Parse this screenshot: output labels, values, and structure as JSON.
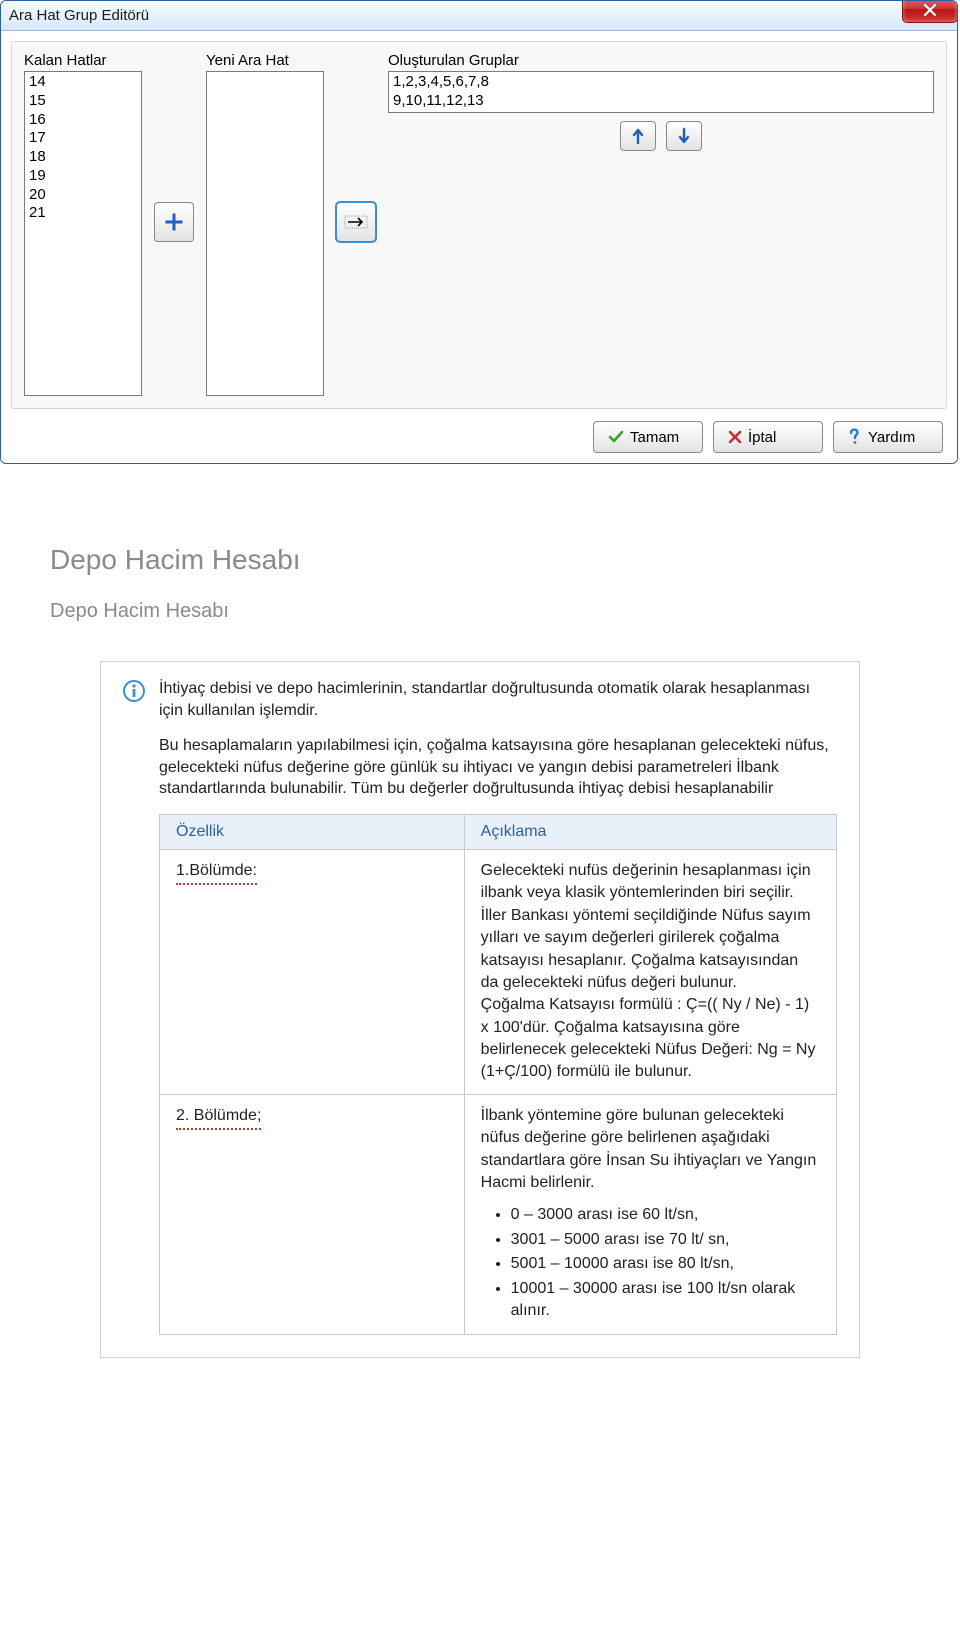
{
  "dialog": {
    "title": "Ara Hat Grup Editörü",
    "columns": {
      "kalan_label": "Kalan Hatlar",
      "yeni_label": "Yeni Ara Hat",
      "gruplar_label": "Oluşturulan Gruplar"
    },
    "kalan_items": [
      "14",
      "15",
      "16",
      "17",
      "18",
      "19",
      "20",
      "21"
    ],
    "yeni_items": [],
    "gruplar_items": [
      "1,2,3,4,5,6,7,8",
      "9,10,11,12,13"
    ],
    "buttons": {
      "tamam": "Tamam",
      "iptal": "İptal",
      "yardim": "Yardım"
    },
    "colors": {
      "title_gradient_top": "#f7fbff",
      "title_gradient_bottom": "#d7e7f6",
      "border": "#2a5fa0",
      "close_red": "#cf3636",
      "plus_blue": "#1e5fbf",
      "arrow_blue": "#1e5fbf",
      "check_green": "#3aa02f",
      "x_red": "#c23030",
      "q_blue": "#2a7fc4",
      "focus_outline": "#3a8fd6"
    }
  },
  "doc": {
    "heading": "Depo Hacim Hesabı",
    "subheading": "Depo Hacim Hesabı",
    "intro1": "İhtiyaç debisi ve depo hacimlerinin, standartlar doğrultusunda otomatik olarak hesaplanması için kullanılan işlemdir.",
    "intro2": "Bu hesaplamaların yapılabilmesi için, çoğalma katsayısına göre hesaplanan gelecekteki nüfus, gelecekteki nüfus değerine göre günlük su ihtiyacı ve yangın debisi parametreleri İlbank standartlarında bulunabilir. Tüm bu değerler doğrultusunda ihtiyaç debisi hesaplanabilir",
    "table": {
      "head_feature": "Özellik",
      "head_desc": "Açıklama",
      "rows": [
        {
          "feature": "1.Bölümde:",
          "desc_html": "Gelecekteki nufüs değerinin hesaplanması için ilbank veya klasik yöntemlerinden biri seçilir. İller Bankası yöntemi seçildiğinde Nüfus sayım yılları ve sayım değerleri girilerek çoğalma katsayısı hesaplanır. Çoğalma katsayısından da gelecekteki nüfus değeri bulunur.\nÇoğalma Katsayısı formülü : Ç=(( Ny / Ne) - 1) x 100'dür. Çoğalma katsayısına göre belirlenecek gelecekteki Nüfus Değeri: Ng = Ny (1+Ç/100) formülü ile bulunur."
        },
        {
          "feature": "2. Bölümde;",
          "desc_html": " İlbank yöntemine göre bulunan gelecekteki nüfus değerine göre belirlenen aşağıdaki standartlara göre İnsan Su ihtiyaçları ve Yangın Hacmi belirlenir.",
          "bullets": [
            "0 – 3000 arası ise 60 lt/sn,",
            "3001 – 5000 arası ise 70 lt/ sn,",
            "5001 – 10000 arası ise 80 lt/sn,",
            "10001 – 30000 arası ise 100 lt/sn olarak alınır."
          ]
        }
      ]
    },
    "colors": {
      "heading_color": "#8a8a8a",
      "table_header_bg": "#e8f1fa",
      "table_header_fg": "#2a5fa0",
      "table_border": "#c8c8c8",
      "underline_red": "#c0392b",
      "info_icon_blue": "#3a8fd6"
    }
  }
}
